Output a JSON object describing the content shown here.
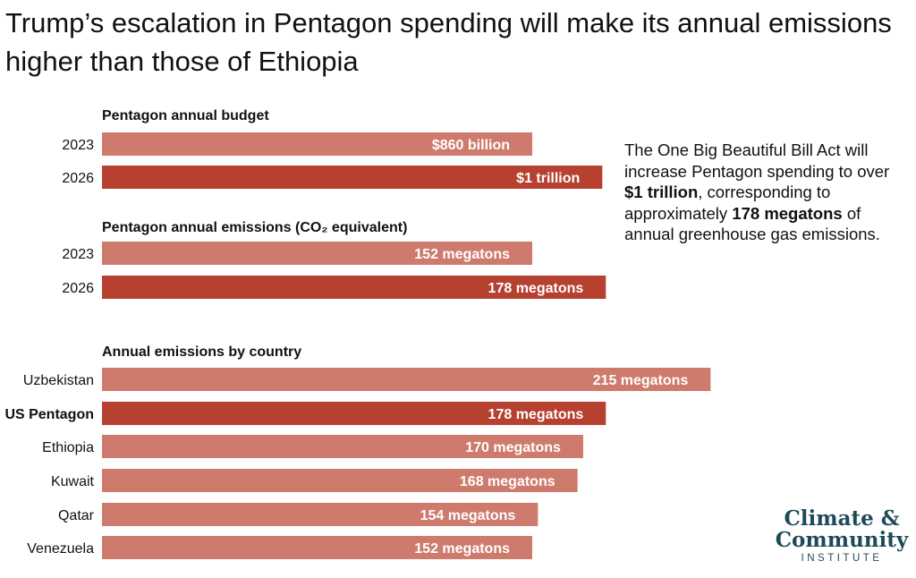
{
  "title": "Trump’s escalation in Pentagon spending will make its annual emissions higher than those of Ethiopia",
  "chart_data": [
    {
      "type": "bar",
      "title": "Pentagon annual budget",
      "categories": [
        "2023",
        "2026"
      ],
      "values": [
        860,
        1000
      ],
      "units": "billion USD",
      "labels": [
        "$860 billion",
        "$1 trillion"
      ],
      "colors": [
        "#ce7b6d",
        "#b74131"
      ]
    },
    {
      "type": "bar",
      "title": "Pentagon annual emissions (CO₂ equivalent)",
      "categories": [
        "2023",
        "2026"
      ],
      "values": [
        152,
        178
      ],
      "units": "megatons",
      "labels": [
        "152 megatons",
        "178 megatons"
      ],
      "colors": [
        "#ce7b6d",
        "#b74131"
      ]
    },
    {
      "type": "bar",
      "title": "Annual emissions by country",
      "categories": [
        "Uzbekistan",
        "US Pentagon",
        "Ethiopia",
        "Kuwait",
        "Qatar",
        "Venezuela"
      ],
      "values": [
        215,
        178,
        170,
        168,
        154,
        152
      ],
      "units": "megatons",
      "labels": [
        "215 megatons",
        "178 megatons",
        "170 megatons",
        "168 megatons",
        "154 megatons",
        "152 megatons"
      ],
      "colors": [
        "#ce7b6d",
        "#b74131",
        "#ce7b6d",
        "#ce7b6d",
        "#ce7b6d",
        "#ce7b6d"
      ],
      "highlight": "US Pentagon"
    }
  ],
  "note": {
    "part1": "The One Big Beautiful Bill Act will increase Pentagon spending to over ",
    "bold1": "$1 trillion",
    "part2": ", corresponding to approximately ",
    "bold2": "178 megatons",
    "part3": " of annual greenhouse gas emissions."
  },
  "logo": {
    "line1": "Climate &",
    "line2": "Community",
    "line3": "INSTITUTE"
  }
}
